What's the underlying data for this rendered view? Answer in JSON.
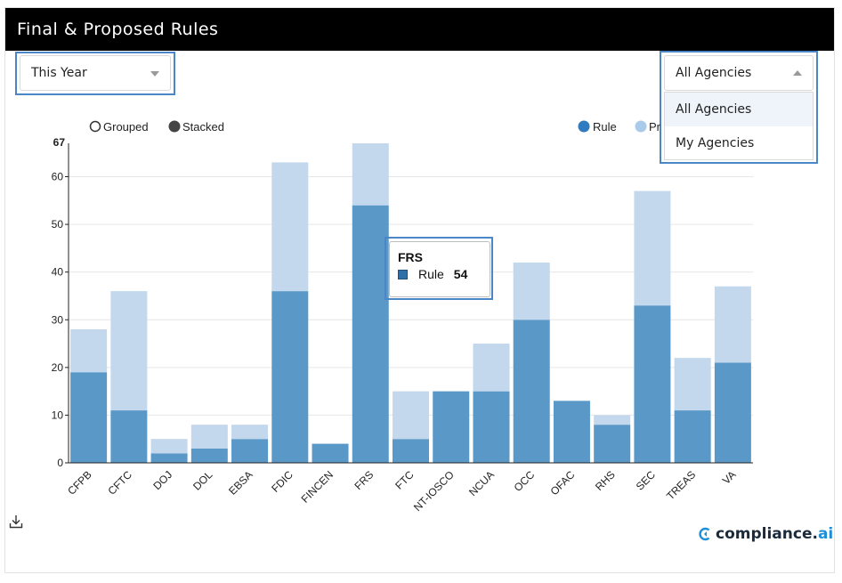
{
  "panel": {
    "title": "Final & Proposed Rules"
  },
  "period_select": {
    "value": "This Year"
  },
  "agency_select": {
    "value": "All Agencies",
    "options": [
      "All Agencies",
      "My Agencies"
    ]
  },
  "chart_data": {
    "type": "bar",
    "mode_options": [
      "Grouped",
      "Stacked"
    ],
    "selected_mode": "Stacked",
    "legend": [
      "Rule",
      "Pr"
    ],
    "categories": [
      "CFPB",
      "CFTC",
      "DOJ",
      "DOL",
      "EBSA",
      "FDIC",
      "FINCEN",
      "FRS",
      "FTC",
      "NT-IOSCO",
      "NCUA",
      "OCC",
      "OFAC",
      "RHS",
      "SEC",
      "TREAS",
      "VA"
    ],
    "category_labels": [
      "CFPB",
      "CFTC",
      "DOJ",
      "DOL",
      "EBSA",
      "FDIC",
      "FINCEN",
      "FRS",
      "FTC",
      "NT-IOSCO",
      "NCUA",
      "OCC",
      "OFAC",
      "RHS",
      "SEC",
      "TREAS",
      "VA"
    ],
    "series": [
      {
        "name": "Rule",
        "values": [
          19,
          11,
          2,
          3,
          5,
          36,
          4,
          54,
          5,
          15,
          15,
          30,
          13,
          8,
          33,
          11,
          21
        ]
      },
      {
        "name": "Proposed Rule",
        "values": [
          9,
          25,
          3,
          5,
          3,
          27,
          0,
          13,
          10,
          0,
          10,
          12,
          0,
          2,
          24,
          11,
          16
        ]
      }
    ],
    "yticks": [
      0,
      10,
      20,
      30,
      40,
      50,
      60
    ],
    "ymax_label": "67",
    "ylim": [
      0,
      67
    ],
    "colors": {
      "rule": "#5a98c8",
      "proposed": "#c3d7ed",
      "legend_rule": "#2e7bbf",
      "legend_proposed": "#a9cbe9"
    },
    "grid": true,
    "legend_position": "top-right"
  },
  "tooltip": {
    "title": "FRS",
    "series": "Rule",
    "value": "54"
  },
  "footer": {
    "brand_main": "compliance.",
    "brand_ai": "ai"
  }
}
